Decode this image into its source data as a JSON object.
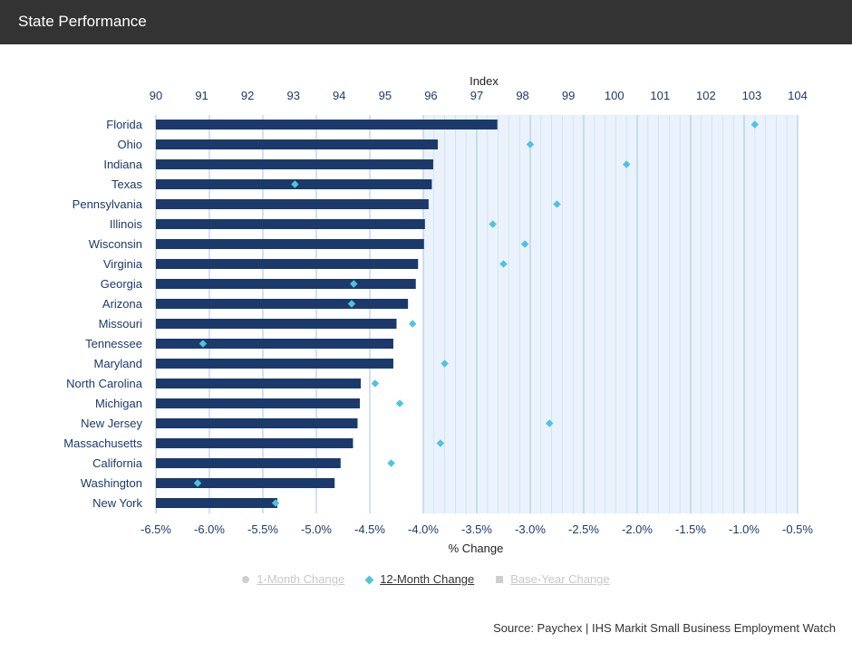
{
  "header": {
    "title": "State Performance"
  },
  "legend": {
    "items": [
      {
        "label": "1-Month Change",
        "icon": "circle-icon",
        "active": false
      },
      {
        "label": "12-Month Change",
        "icon": "diamond-icon",
        "active": true
      },
      {
        "label": "Base-Year Change",
        "icon": "square-icon",
        "active": false
      }
    ]
  },
  "source": "Source: Paychex | IHS Markit Small Business Employment Watch",
  "colors": {
    "bar": "#1b3a6b",
    "marker": "#4fc3e0",
    "shade": "#eaf3fc",
    "axis_text_top": "#1b3a6b",
    "axis_text_bottom": "#1b3a6b"
  },
  "chart_data": {
    "type": "bar",
    "orientation": "horizontal",
    "categories": [
      "Florida",
      "Ohio",
      "Indiana",
      "Texas",
      "Pennsylvania",
      "Illinois",
      "Wisconsin",
      "Virginia",
      "Georgia",
      "Arizona",
      "Missouri",
      "Tennessee",
      "Maryland",
      "North Carolina",
      "Michigan",
      "New Jersey",
      "Massachusetts",
      "California",
      "Washington",
      "New York"
    ],
    "top_axis": {
      "label": "Index",
      "range": [
        90,
        104
      ],
      "ticks": [
        "90",
        "91",
        "92",
        "93",
        "94",
        "95",
        "96",
        "97",
        "98",
        "99",
        "100",
        "101",
        "102",
        "103",
        "104"
      ]
    },
    "bottom_axis": {
      "label": "% Change",
      "range": [
        -6.5,
        -0.5
      ],
      "ticks": [
        "-6.5%",
        "-6.0%",
        "-5.5%",
        "-5.0%",
        "-4.5%",
        "-4.0%",
        "-3.5%",
        "-3.0%",
        "-2.5%",
        "-2.0%",
        "-1.5%",
        "-1.0%",
        "-0.5%"
      ]
    },
    "series": [
      {
        "name": "Index",
        "axis": "top",
        "mark": "bar",
        "values": [
          97.45,
          96.15,
          96.05,
          96.02,
          95.95,
          95.87,
          95.85,
          95.72,
          95.67,
          95.5,
          95.25,
          95.18,
          95.18,
          94.47,
          94.45,
          94.4,
          94.3,
          94.03,
          93.9,
          92.65
        ]
      },
      {
        "name": "12-Month Change",
        "axis": "bottom",
        "mark": "diamond",
        "values": [
          -0.9,
          -3.0,
          -2.1,
          -5.2,
          -2.75,
          -3.35,
          -3.05,
          -3.25,
          -4.65,
          -4.67,
          -4.1,
          -6.06,
          -3.8,
          -4.45,
          -4.22,
          -2.82,
          -3.84,
          -4.3,
          -6.11,
          -5.38
        ]
      }
    ],
    "grid": true,
    "legend_position": "bottom-center"
  }
}
